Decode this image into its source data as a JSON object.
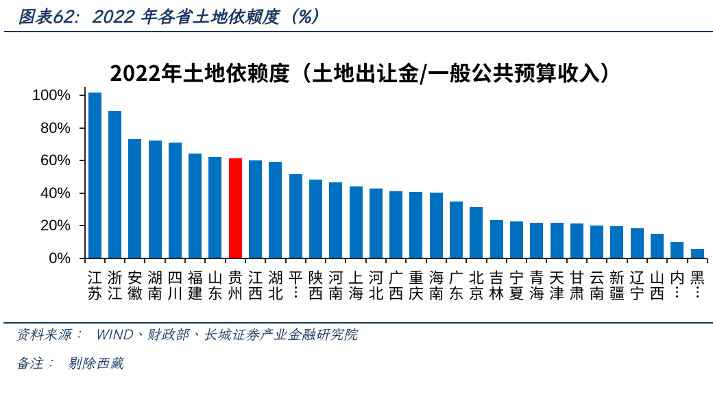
{
  "page": {
    "background_color": "#ffffff",
    "accent_color": "#17375e"
  },
  "header": {
    "caption": "图表62:  2022 年各省土地依赖度（%）"
  },
  "chart_data": {
    "type": "bar",
    "title": "2022年土地依赖度（土地出让金/一般公共预算收入）",
    "categories": [
      "江苏",
      "浙江",
      "安徽",
      "湖南",
      "四川",
      "福建",
      "山东",
      "贵州",
      "江西",
      "湖北",
      "平⋮",
      "陕西",
      "河南",
      "上海",
      "河北",
      "广西",
      "重庆",
      "海南",
      "广东",
      "北京",
      "吉林",
      "宁夏",
      "青海",
      "天津",
      "甘肃",
      "云南",
      "新疆",
      "辽宁",
      "山西",
      "内⋮",
      "黑⋮"
    ],
    "values": [
      101.7,
      90.3,
      73.1,
      72.3,
      70.9,
      64.3,
      62.1,
      61.2,
      60.0,
      59.1,
      51.6,
      48.1,
      46.6,
      43.9,
      43.0,
      41.3,
      40.7,
      40.3,
      34.6,
      31.5,
      23.3,
      22.4,
      21.8,
      21.6,
      21.3,
      20.2,
      19.7,
      18.2,
      15.1,
      9.8,
      5.6
    ],
    "highlight_index": 7,
    "bar_color": "#0070c0",
    "highlight_color": "#ff0000",
    "y_tick_labels": [
      "100%",
      "80%",
      "60%",
      "40%",
      "20%",
      "0%"
    ],
    "y_tick_values": [
      100,
      80,
      60,
      40,
      20,
      0
    ],
    "ylim": [
      0,
      105
    ],
    "xlabel": "",
    "ylabel": "",
    "grid": false,
    "legend": false
  },
  "footer": {
    "source": "资料来源：  WIND、财政部、长城证券产业金融研究院",
    "note": "备注：  剔除西藏"
  }
}
